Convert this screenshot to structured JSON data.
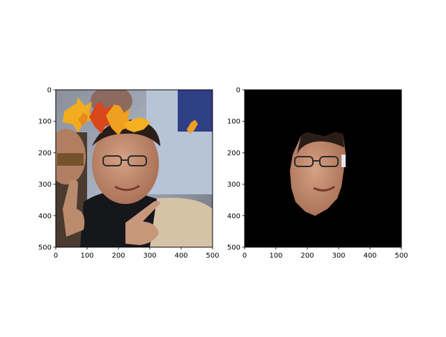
{
  "figure": {
    "panels": [
      {
        "image": "photo-with-autumn-leaves-overlay",
        "xticks": [
          "0",
          "100",
          "200",
          "300",
          "400",
          "500"
        ],
        "yticks": [
          "0",
          "100",
          "200",
          "300",
          "400",
          "500"
        ]
      },
      {
        "image": "segmented-face-mask-on-black",
        "xticks": [
          "0",
          "100",
          "200",
          "300",
          "400",
          "500"
        ],
        "yticks": [
          "0",
          "100",
          "200",
          "300",
          "400",
          "500"
        ]
      }
    ],
    "colors": {
      "mask_background": "#000000",
      "leaf_orange": "#f0a020",
      "leaf_red": "#d9471a",
      "skin": "#c88f72"
    }
  }
}
